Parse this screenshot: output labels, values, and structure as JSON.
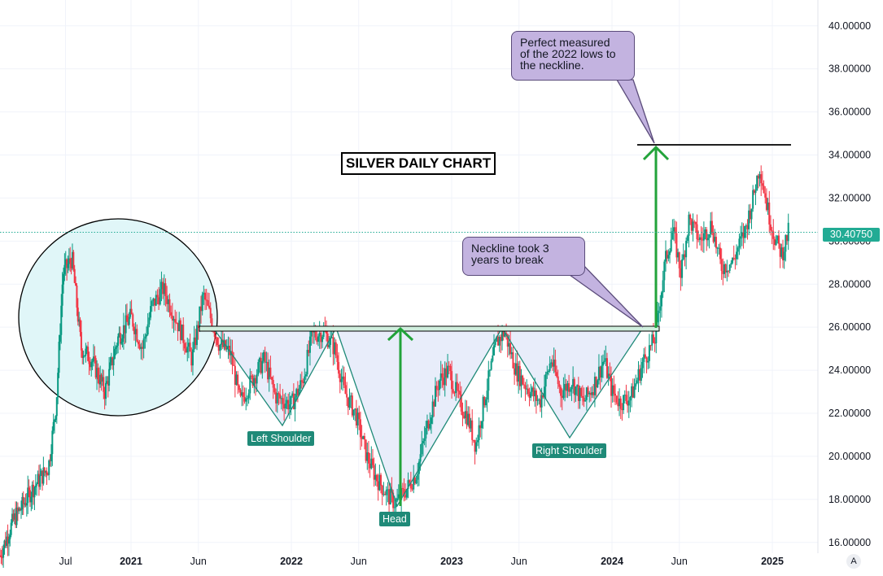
{
  "chart_data": {
    "type": "candlestick",
    "title": "SILVER DAILY CHART",
    "ylim": [
      15.5,
      41.2
    ],
    "y_ticks": [
      "40.00000",
      "38.00000",
      "36.00000",
      "34.00000",
      "32.00000",
      "30.00000",
      "28.00000",
      "26.00000",
      "24.00000",
      "22.00000",
      "20.00000",
      "18.00000",
      "16.00000"
    ],
    "y_tick_values": [
      40,
      38,
      36,
      34,
      32,
      30,
      28,
      26,
      24,
      22,
      20,
      18,
      16
    ],
    "x_ticks": [
      {
        "label": "Jul",
        "t": 0.5,
        "bold": false
      },
      {
        "label": "2021",
        "t": 1.0,
        "bold": true
      },
      {
        "label": "Jun",
        "t": 1.42,
        "bold": false
      },
      {
        "label": "2022",
        "t": 2.0,
        "bold": true
      },
      {
        "label": "Jun",
        "t": 2.42,
        "bold": false
      },
      {
        "label": "2023",
        "t": 3.0,
        "bold": true
      },
      {
        "label": "Jun",
        "t": 3.42,
        "bold": false
      },
      {
        "label": "2024",
        "t": 4.0,
        "bold": true
      },
      {
        "label": "Jun",
        "t": 4.42,
        "bold": false
      },
      {
        "label": "2025",
        "t": 5.0,
        "bold": true
      }
    ],
    "last_price": 30.4075,
    "last_price_label": "30.40750",
    "price_path": [
      [
        0.0,
        15.4
      ],
      [
        0.1,
        17.0
      ],
      [
        0.25,
        18.5
      ],
      [
        0.37,
        19.5
      ],
      [
        0.43,
        22.5
      ],
      [
        0.48,
        28.5
      ],
      [
        0.55,
        29.2
      ],
      [
        0.62,
        25.0
      ],
      [
        0.7,
        24.5
      ],
      [
        0.8,
        23.0
      ],
      [
        0.9,
        25.5
      ],
      [
        1.0,
        26.5
      ],
      [
        1.07,
        25.0
      ],
      [
        1.13,
        27.0
      ],
      [
        1.2,
        27.8
      ],
      [
        1.3,
        26.0
      ],
      [
        1.38,
        24.5
      ],
      [
        1.45,
        27.5
      ],
      [
        1.55,
        25.2
      ],
      [
        1.62,
        24.8
      ],
      [
        1.68,
        22.5
      ],
      [
        1.75,
        23.5
      ],
      [
        1.83,
        24.5
      ],
      [
        1.9,
        22.8
      ],
      [
        2.0,
        22.4
      ],
      [
        2.07,
        23.5
      ],
      [
        2.13,
        25.6
      ],
      [
        2.2,
        25.8
      ],
      [
        2.27,
        25.0
      ],
      [
        2.33,
        23.0
      ],
      [
        2.4,
        22.0
      ],
      [
        2.47,
        20.0
      ],
      [
        2.53,
        19.0
      ],
      [
        2.6,
        18.2
      ],
      [
        2.65,
        17.8
      ],
      [
        2.72,
        18.5
      ],
      [
        2.78,
        19.2
      ],
      [
        2.85,
        21.5
      ],
      [
        2.92,
        23.5
      ],
      [
        2.98,
        24.0
      ],
      [
        3.05,
        22.5
      ],
      [
        3.1,
        21.8
      ],
      [
        3.15,
        20.5
      ],
      [
        3.2,
        22.5
      ],
      [
        3.28,
        25.3
      ],
      [
        3.33,
        25.8
      ],
      [
        3.4,
        24.0
      ],
      [
        3.47,
        23.2
      ],
      [
        3.55,
        22.5
      ],
      [
        3.62,
        24.5
      ],
      [
        3.68,
        23.0
      ],
      [
        3.75,
        23.5
      ],
      [
        3.82,
        22.5
      ],
      [
        3.88,
        23.2
      ],
      [
        3.95,
        24.5
      ],
      [
        4.0,
        23.0
      ],
      [
        4.05,
        22.5
      ],
      [
        4.12,
        22.8
      ],
      [
        4.2,
        24.5
      ],
      [
        4.27,
        25.5
      ],
      [
        4.33,
        29.0
      ],
      [
        4.38,
        30.5
      ],
      [
        4.43,
        28.5
      ],
      [
        4.48,
        31.0
      ],
      [
        4.55,
        30.0
      ],
      [
        4.62,
        30.8
      ],
      [
        4.68,
        28.8
      ],
      [
        4.75,
        29.0
      ],
      [
        4.83,
        30.5
      ],
      [
        4.88,
        32.0
      ],
      [
        4.92,
        33.5
      ],
      [
        4.97,
        31.5
      ],
      [
        5.02,
        30.0
      ],
      [
        5.06,
        29.4
      ],
      [
        5.1,
        30.41
      ]
    ],
    "neckline": 25.9,
    "target": 34.6,
    "annotations": {
      "perfect_measured": "Perfect measured of the 2022 lows to the neckline.",
      "neckline_took": "Neckline took 3 years to break",
      "left_shoulder": "Left Shoulder",
      "head": "Head",
      "right_shoulder": "Right Shoulder"
    },
    "colors": {
      "up": "#089981",
      "down": "#f23645",
      "accent": "#22ab94",
      "pattern_fill": "#e8edfa",
      "circle_fill": "#e0f6f8",
      "arrow": "#22a33a"
    }
  },
  "callouts": {
    "measured_line1": "Perfect measured",
    "measured_line2": "of the 2022 lows to",
    "measured_line3": "the neckline.",
    "neckline_line1": "Neckline took 3",
    "neckline_line2": "years to break"
  },
  "labels": {
    "left_shoulder": "Left Shoulder",
    "head": "Head",
    "right_shoulder": "Right Shoulder",
    "title": "SILVER DAILY CHART",
    "price_badge": "30.40750",
    "auto_button": "A"
  }
}
